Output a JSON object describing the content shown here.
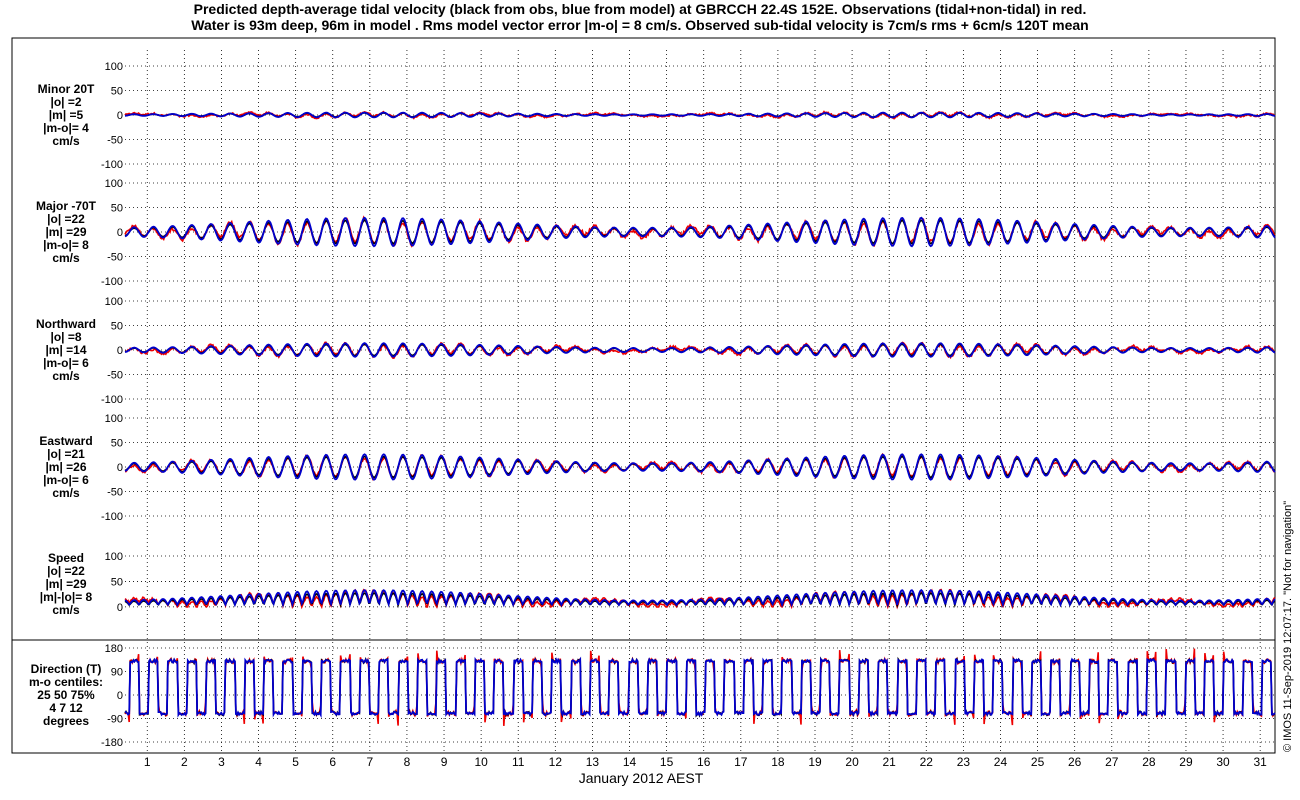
{
  "title_line1": "Predicted depth-average tidal velocity (black from obs, blue from model) at GBRCCH 22.4S 152E. Observations (tidal+non-tidal) in red.",
  "title_line2": "Water is 93m deep, 96m in model . Rms model vector error |m-o| = 8 cm/s. Observed sub-tidal velocity is 7cm/s rms + 6cm/s 120T mean",
  "credit": "© IMOS 11-Sep-2019 12:07:17. \"Not for navigation\"",
  "colors": {
    "obs": "#000000",
    "model": "#0000cc",
    "observed_total": "#ee0000"
  },
  "chart_data": {
    "type": "line",
    "xlabel": "January 2012 AEST",
    "x_ticks": [
      1,
      2,
      3,
      4,
      5,
      6,
      7,
      8,
      9,
      10,
      11,
      12,
      13,
      14,
      15,
      16,
      17,
      18,
      19,
      20,
      21,
      22,
      23,
      24,
      25,
      26,
      27,
      28,
      29,
      30,
      31
    ],
    "x_tick_labels": [
      "1",
      "2",
      "3",
      "4",
      "5",
      "6",
      "7",
      "8",
      "9",
      "10",
      "11",
      "12",
      "13",
      "14",
      "15",
      "16",
      "17",
      "18",
      "19",
      "20",
      "21",
      "22",
      "23",
      "24",
      "25",
      "26",
      "27",
      "28",
      "29",
      "30",
      "31"
    ],
    "xlim": [
      0.4,
      31.4
    ],
    "grid": true,
    "panels": [
      {
        "id": "minor",
        "label_lines": [
          "Minor 20T",
          "|o| =2",
          "|m| =5",
          "|m-o|= 4",
          "cm/s"
        ],
        "ylim": [
          -100,
          100
        ],
        "y_ticks": [
          -100,
          -50,
          0,
          50,
          100
        ],
        "y_tick_labels": [
          "-100",
          "-50",
          "0",
          "50",
          "100"
        ],
        "signal": {
          "kind": "signed",
          "amplitude": 5,
          "offset": 0,
          "noise": 4
        }
      },
      {
        "id": "major",
        "label_lines": [
          "Major -70T",
          "|o| =22",
          "|m| =29",
          "|m-o|= 8",
          "cm/s"
        ],
        "ylim": [
          -100,
          100
        ],
        "y_ticks": [
          -100,
          -50,
          0,
          50,
          100
        ],
        "y_tick_labels": [
          "-100",
          "-50",
          "0",
          "50",
          "100"
        ],
        "signal": {
          "kind": "signed",
          "amplitude": 29,
          "offset": 0,
          "noise": 8
        }
      },
      {
        "id": "northward",
        "label_lines": [
          "Northward",
          "|o| =8",
          "|m| =14",
          "|m-o|= 6",
          "cm/s"
        ],
        "ylim": [
          -100,
          100
        ],
        "y_ticks": [
          -100,
          -50,
          0,
          50,
          100
        ],
        "y_tick_labels": [
          "-100",
          "-50",
          "0",
          "50",
          "100"
        ],
        "signal": {
          "kind": "signed",
          "amplitude": 14,
          "offset": 0,
          "noise": 6
        }
      },
      {
        "id": "eastward",
        "label_lines": [
          "Eastward",
          "|o| =21",
          "|m| =26",
          "|m-o|= 6",
          "cm/s"
        ],
        "ylim": [
          -100,
          100
        ],
        "y_ticks": [
          -100,
          -50,
          0,
          50,
          100
        ],
        "y_tick_labels": [
          "-100",
          "-50",
          "0",
          "50",
          "100"
        ],
        "signal": {
          "kind": "signed",
          "amplitude": 26,
          "offset": 0,
          "noise": 6
        }
      },
      {
        "id": "speed",
        "label_lines": [
          "Speed",
          "|o| =22",
          "|m| =29",
          "|m|-|o|= 8",
          "cm/s"
        ],
        "ylim": [
          -10,
          100
        ],
        "y_ticks": [
          0,
          50,
          100
        ],
        "y_tick_labels": [
          "0",
          "50",
          "100"
        ],
        "signal": {
          "kind": "speed",
          "amplitude": 29,
          "offset": 0,
          "noise": 8
        }
      },
      {
        "id": "direction",
        "label_lines": [
          "Direction (T)",
          "m-o centiles:",
          "25  50  75%",
          "4   7  12",
          "degrees"
        ],
        "ylim": [
          -180,
          180
        ],
        "y_ticks": [
          -180,
          -90,
          0,
          90,
          180
        ],
        "y_tick_labels": [
          "-180",
          "-90",
          "0",
          "90",
          "180"
        ],
        "signal": {
          "kind": "direction",
          "amplitude": 180,
          "offset": 0,
          "noise": 12
        }
      }
    ]
  }
}
